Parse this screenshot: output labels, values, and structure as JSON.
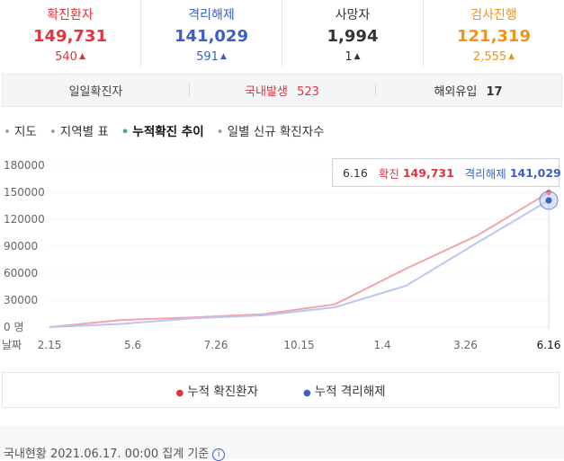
{
  "stats": [
    {
      "label": "확진환자",
      "value": "149,731",
      "delta": "540",
      "color": "#e0343e"
    },
    {
      "label": "격리해제",
      "value": "141,029",
      "delta": "591",
      "color": "#3b5fc6"
    },
    {
      "label": "사망자",
      "value": "1,994",
      "delta": "1",
      "color": "#333333"
    },
    {
      "label": "검사진행",
      "value": "121,319",
      "delta": "2,555",
      "color": "#f0921b"
    }
  ],
  "daily": {
    "label": "일일확진자",
    "domestic_label": "국내발생",
    "domestic_value": "523",
    "overseas_label": "해외유입",
    "overseas_value": "17"
  },
  "tabs": [
    {
      "label": "지도"
    },
    {
      "label": "지역별 표"
    },
    {
      "label": "누적확진 추이"
    },
    {
      "label": "일별 신규 확진자수"
    }
  ],
  "tooltip": {
    "date": "6.16",
    "confirmed_label": "확진",
    "confirmed_value": "149,731",
    "released_label": "격리해제",
    "released_value": "141,029"
  },
  "legend": {
    "confirmed": "누적 확진환자",
    "released": "누적 격리해제"
  },
  "footer": {
    "text": "국내현황 2021.06.17. 00:00 집계 기준",
    "info": "i"
  },
  "colors": {
    "confirmed": "#f4a3a8",
    "released": "#b9c6ef",
    "accent_red": "#e0343e",
    "accent_blue": "#3b5fc6"
  },
  "chart_data": {
    "type": "line",
    "y_unit": "명",
    "x_tick_title": "날짜",
    "ylim": [
      0,
      180000
    ],
    "y_ticks": [
      "180000",
      "150000",
      "120000",
      "90000",
      "60000",
      "30000",
      "0"
    ],
    "x_ticks": [
      "2.15",
      "5.6",
      "7.26",
      "10.15",
      "1.4",
      "3.26",
      "6.16"
    ],
    "series": [
      {
        "name": "누적 확진환자",
        "values": [
          30,
          7900,
          10800,
          14400,
          25300,
          65000,
          102000,
          149731
        ]
      },
      {
        "name": "누적 격리해제",
        "values": [
          0,
          3500,
          9700,
          13100,
          22000,
          46000,
          94000,
          141029
        ]
      }
    ]
  }
}
